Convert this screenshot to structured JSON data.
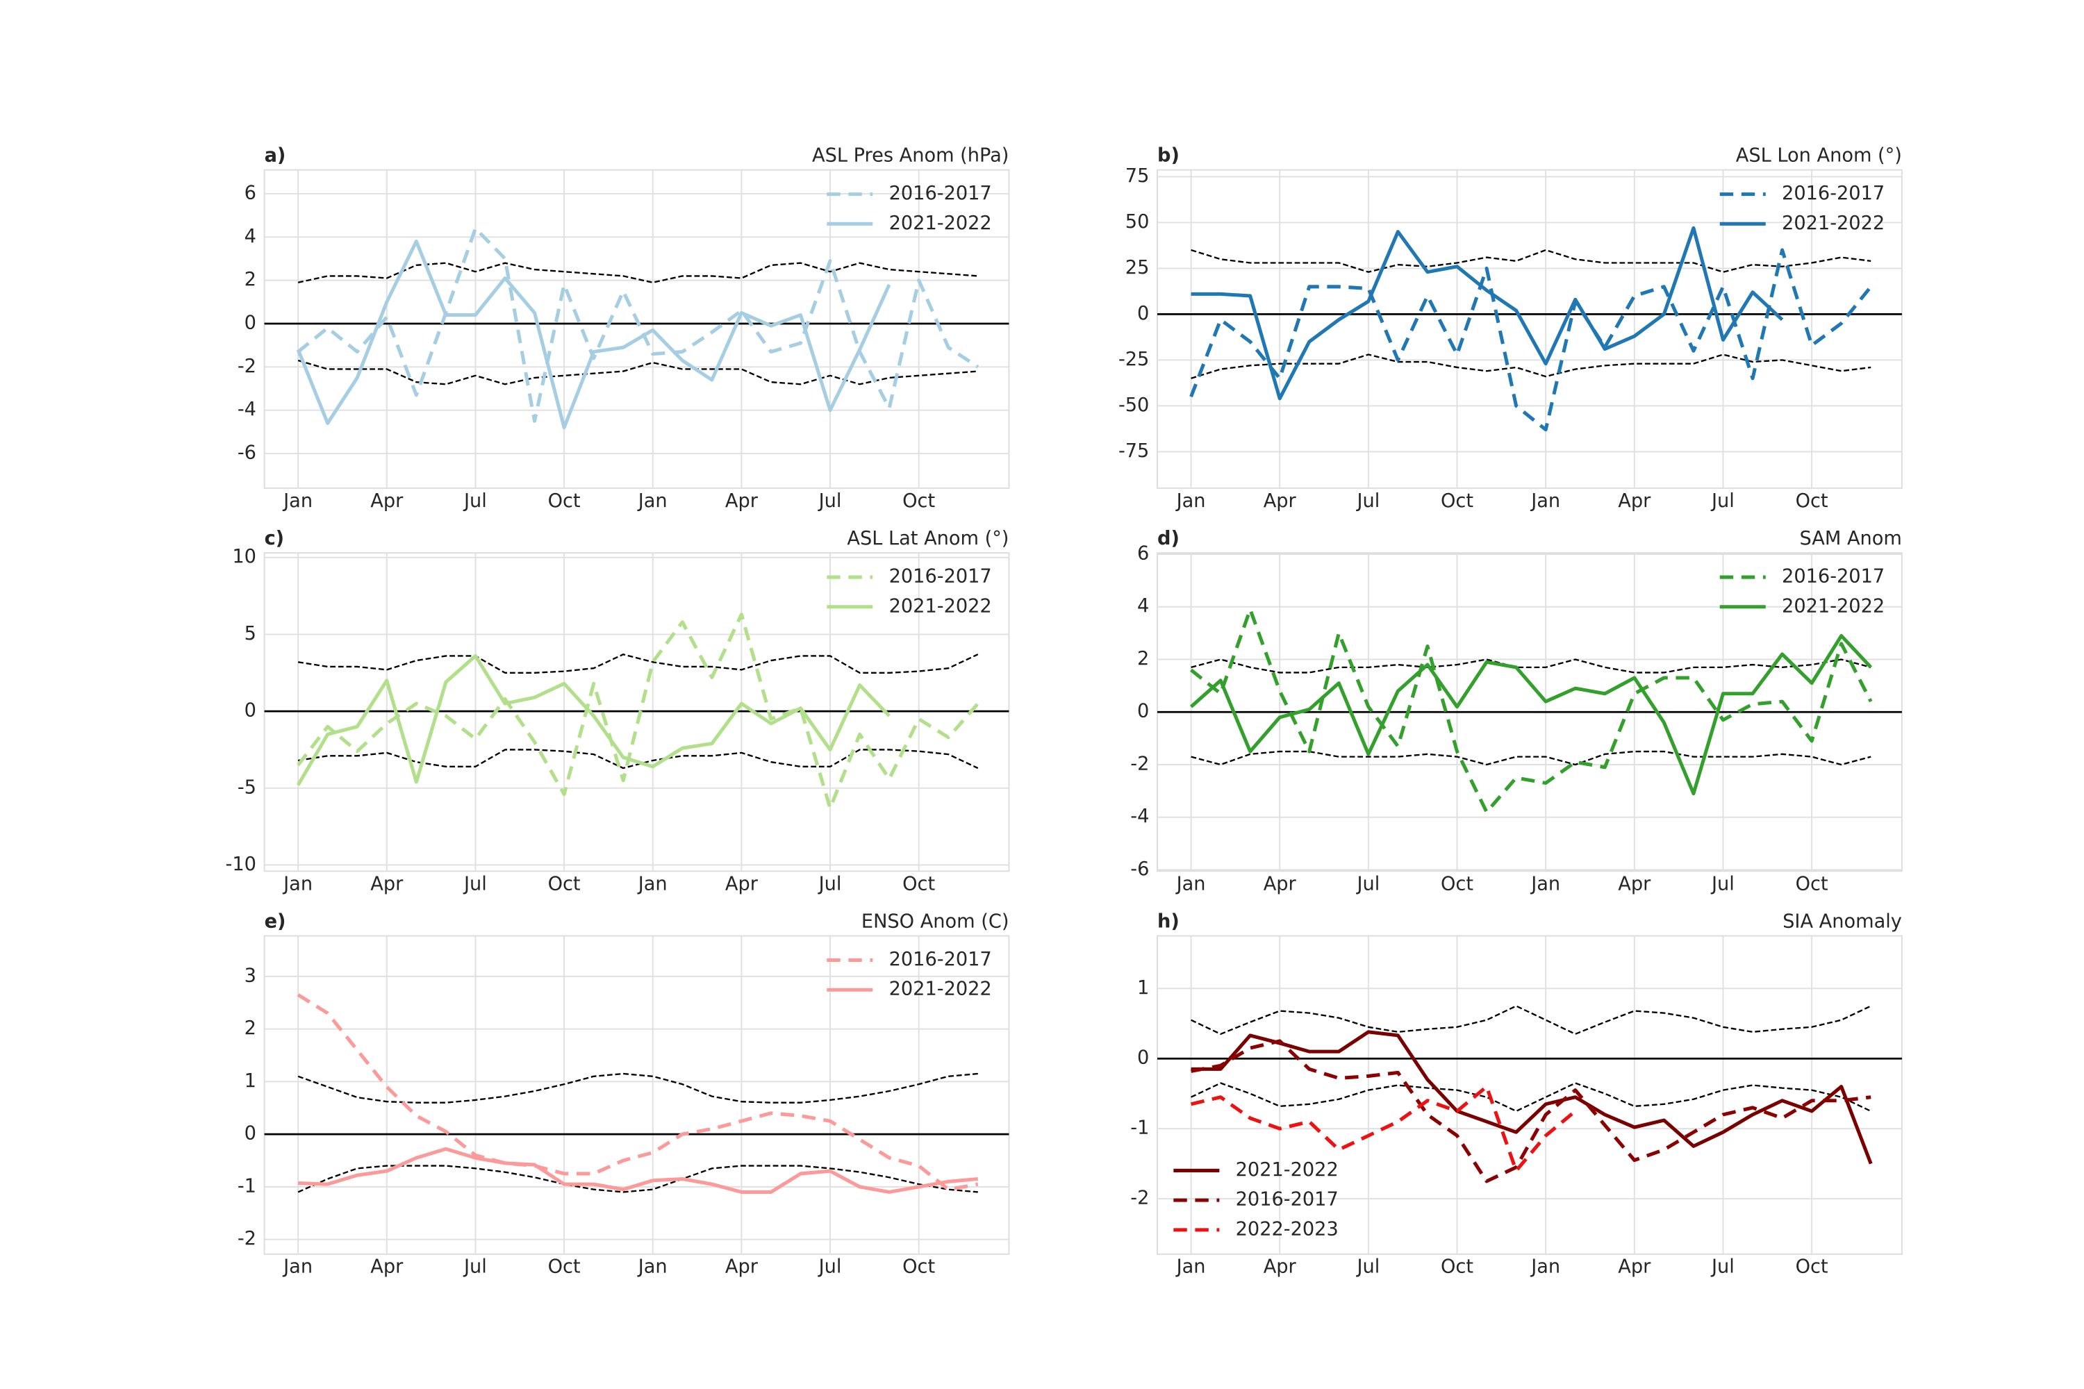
{
  "chart_data": [
    {
      "type": "line",
      "label": "a)",
      "title": "ASL Pres Anom (hPa)",
      "legend": "upper right",
      "grid": true,
      "categories": [
        "Jan",
        null,
        null,
        "Apr",
        null,
        null,
        "Jul",
        null,
        null,
        "Oct",
        null,
        null,
        "Jan",
        null,
        null,
        "Apr",
        null,
        null,
        "Jul",
        null,
        null,
        "Oct",
        null,
        null
      ],
      "ylim": [
        -7.6,
        7.1
      ],
      "yticks": [
        -6,
        -4,
        -2,
        0,
        2,
        4,
        6
      ],
      "hline": 0,
      "series": [
        {
          "name": "2016-2017",
          "color": "#a6cee3",
          "dash": true,
          "values": [
            -1.3,
            -0.2,
            -1.3,
            0.3,
            -3.3,
            0.5,
            4.4,
            3.0,
            -4.5,
            1.8,
            -1.6,
            1.5,
            -1.4,
            -1.3,
            -0.4,
            0.6,
            -1.3,
            -0.9,
            2.9,
            -1.3,
            -3.9,
            2.0,
            -1.1,
            -2.0
          ]
        },
        {
          "name": "2021-2022",
          "color": "#a6cee3",
          "dash": false,
          "values": [
            -1.2,
            -4.6,
            -2.5,
            1.0,
            3.8,
            0.4,
            0.4,
            2.1,
            0.5,
            -4.8,
            -1.3,
            -1.1,
            -0.3,
            -1.7,
            -2.6,
            0.5,
            -0.1,
            0.4,
            -4.0,
            -1.2,
            1.8,
            null,
            null,
            null
          ]
        }
      ],
      "bounds": {
        "upper": [
          1.9,
          2.2,
          2.2,
          2.1,
          2.7,
          2.8,
          2.4,
          2.8,
          2.5,
          2.4,
          2.3,
          2.2,
          1.9,
          2.2,
          2.2,
          2.1,
          2.7,
          2.8,
          2.4,
          2.8,
          2.5,
          2.4,
          2.3,
          2.2
        ],
        "lower": [
          -1.7,
          -2.1,
          -2.1,
          -2.1,
          -2.7,
          -2.8,
          -2.4,
          -2.8,
          -2.5,
          -2.4,
          -2.3,
          -2.2,
          -1.8,
          -2.1,
          -2.1,
          -2.1,
          -2.7,
          -2.8,
          -2.4,
          -2.8,
          -2.5,
          -2.4,
          -2.3,
          -2.2
        ]
      }
    },
    {
      "type": "line",
      "label": "b)",
      "title": "ASL Lon Anom (°)",
      "legend": "upper right",
      "grid": true,
      "categories": [
        "Jan",
        null,
        null,
        "Apr",
        null,
        null,
        "Jul",
        null,
        null,
        "Oct",
        null,
        null,
        "Jan",
        null,
        null,
        "Apr",
        null,
        null,
        "Jul",
        null,
        null,
        "Oct",
        null,
        null
      ],
      "ylim": [
        -94.9,
        78.7
      ],
      "yticks": [
        -75,
        -50,
        -25,
        0,
        25,
        50,
        75
      ],
      "hline": 0,
      "series": [
        {
          "name": "2016-2017",
          "color": "#1f78b4",
          "dash": true,
          "values": [
            -45,
            -3,
            -15,
            -35,
            15,
            15,
            14,
            -25,
            10,
            -22,
            25,
            -50,
            -63,
            7,
            -18,
            10,
            15,
            -20,
            15,
            -35,
            35,
            -17,
            -5,
            15
          ]
        },
        {
          "name": "2021-2022",
          "color": "#1f78b4",
          "dash": false,
          "values": [
            11,
            11,
            10,
            -46,
            -15,
            -3,
            7,
            45,
            23,
            26,
            13,
            2,
            -27,
            8,
            -19,
            -12,
            0,
            47,
            -14,
            12,
            -3,
            null,
            null,
            null
          ]
        }
      ],
      "bounds": {
        "upper": [
          35,
          30,
          28,
          28,
          28,
          28,
          23,
          27,
          26,
          28,
          31,
          29,
          35,
          30,
          28,
          28,
          28,
          28,
          23,
          27,
          26,
          28,
          31,
          29
        ],
        "lower": [
          -35,
          -30,
          -28,
          -27,
          -27,
          -27,
          -22,
          -26,
          -26,
          -29,
          -31,
          -29,
          -34,
          -30,
          -28,
          -27,
          -27,
          -27,
          -22,
          -26,
          -25,
          -28,
          -31,
          -29
        ]
      }
    },
    {
      "type": "line",
      "label": "c)",
      "title": "ASL Lat Anom (°)",
      "legend": "upper right",
      "grid": true,
      "categories": [
        "Jan",
        null,
        null,
        "Apr",
        null,
        null,
        "Jul",
        null,
        null,
        "Oct",
        null,
        null,
        "Jan",
        null,
        null,
        "Apr",
        null,
        null,
        "Jul",
        null,
        null,
        "Oct",
        null,
        null
      ],
      "ylim": [
        -10.4,
        10.3
      ],
      "yticks": [
        -10,
        -5,
        0,
        5,
        10
      ],
      "hline": 0,
      "series": [
        {
          "name": "2016-2017",
          "color": "#b2df8a",
          "dash": true,
          "values": [
            -3.5,
            -1.0,
            -2.6,
            -0.8,
            0.5,
            -0.3,
            -1.8,
            0.8,
            -2.0,
            -5.4,
            1.8,
            -4.5,
            3.2,
            5.8,
            2.2,
            6.3,
            -0.5,
            0.2,
            -6.3,
            -1.5,
            -4.4,
            -0.5,
            -1.7,
            0.5
          ]
        },
        {
          "name": "2021-2022",
          "color": "#b2df8a",
          "dash": false,
          "values": [
            -4.8,
            -1.5,
            -1.0,
            2.0,
            -4.6,
            1.9,
            3.6,
            0.5,
            0.9,
            1.8,
            -0.3,
            -3.0,
            -3.6,
            -2.4,
            -2.1,
            0.5,
            -0.8,
            0.2,
            -2.5,
            1.7,
            -0.3,
            null,
            null,
            null
          ]
        }
      ],
      "bounds": {
        "upper": [
          3.2,
          2.9,
          2.9,
          2.7,
          3.3,
          3.6,
          3.6,
          2.5,
          2.5,
          2.6,
          2.8,
          3.7,
          3.2,
          2.9,
          2.9,
          2.7,
          3.3,
          3.6,
          3.6,
          2.5,
          2.5,
          2.6,
          2.8,
          3.7
        ],
        "lower": [
          -3.2,
          -2.9,
          -2.9,
          -2.7,
          -3.3,
          -3.6,
          -3.6,
          -2.5,
          -2.5,
          -2.6,
          -2.8,
          -3.7,
          -3.2,
          -2.9,
          -2.9,
          -2.7,
          -3.3,
          -3.6,
          -3.6,
          -2.5,
          -2.5,
          -2.6,
          -2.8,
          -3.7
        ]
      }
    },
    {
      "type": "line",
      "label": "d)",
      "title": "SAM Anom",
      "legend": "upper right",
      "grid": true,
      "categories": [
        "Jan",
        null,
        null,
        "Apr",
        null,
        null,
        "Jul",
        null,
        null,
        "Oct",
        null,
        null,
        "Jan",
        null,
        null,
        "Apr",
        null,
        null,
        "Jul",
        null,
        null,
        "Oct",
        null,
        null
      ],
      "ylim": [
        -6.05,
        6.05
      ],
      "yticks": [
        -6,
        -4,
        -2,
        0,
        2,
        4,
        6
      ],
      "hline": 0,
      "series": [
        {
          "name": "2016-2017",
          "color": "#33a02c",
          "dash": true,
          "values": [
            1.6,
            0.7,
            3.9,
            0.8,
            -1.5,
            3.0,
            0.2,
            -1.3,
            2.5,
            -1.5,
            -3.8,
            -2.5,
            -2.7,
            -1.9,
            -2.1,
            0.7,
            1.3,
            1.3,
            -0.3,
            0.3,
            0.4,
            -1.1,
            2.6,
            0.4
          ]
        },
        {
          "name": "2021-2022",
          "color": "#33a02c",
          "dash": false,
          "values": [
            0.2,
            1.2,
            -1.5,
            -0.2,
            0.1,
            1.1,
            -1.6,
            0.8,
            1.8,
            0.2,
            1.9,
            1.7,
            0.4,
            0.9,
            0.7,
            1.3,
            -0.4,
            -3.1,
            0.7,
            0.7,
            2.2,
            1.1,
            2.9,
            1.7
          ]
        }
      ],
      "bounds": {
        "upper": [
          1.7,
          2.0,
          1.7,
          1.5,
          1.5,
          1.7,
          1.7,
          1.8,
          1.7,
          1.8,
          2.0,
          1.7,
          1.7,
          2.0,
          1.7,
          1.5,
          1.5,
          1.7,
          1.7,
          1.8,
          1.7,
          1.8,
          2.0,
          1.7
        ],
        "lower": [
          -1.7,
          -2.0,
          -1.6,
          -1.5,
          -1.5,
          -1.7,
          -1.7,
          -1.7,
          -1.6,
          -1.7,
          -2.0,
          -1.7,
          -1.7,
          -2.0,
          -1.6,
          -1.5,
          -1.5,
          -1.7,
          -1.7,
          -1.7,
          -1.6,
          -1.7,
          -2.0,
          -1.7
        ]
      }
    },
    {
      "type": "line",
      "label": "e)",
      "title": "ENSO Anom (C)",
      "legend": "upper right",
      "grid": true,
      "categories": [
        "Jan",
        null,
        null,
        "Apr",
        null,
        null,
        "Jul",
        null,
        null,
        "Oct",
        null,
        null,
        "Jan",
        null,
        null,
        "Apr",
        null,
        null,
        "Jul",
        null,
        null,
        "Oct",
        null,
        null
      ],
      "ylim": [
        -2.28,
        3.77
      ],
      "yticks": [
        -2,
        -1,
        0,
        1,
        2,
        3
      ],
      "hline": 0,
      "series": [
        {
          "name": "2016-2017",
          "color": "#fb9a99",
          "dash": true,
          "values": [
            2.65,
            2.3,
            1.6,
            0.9,
            0.35,
            0.05,
            -0.4,
            -0.55,
            -0.6,
            -0.75,
            -0.75,
            -0.5,
            -0.35,
            0.0,
            0.1,
            0.25,
            0.4,
            0.35,
            0.25,
            -0.1,
            -0.45,
            -0.6,
            -1.05,
            -0.95
          ]
        },
        {
          "name": "2021-2022",
          "color": "#fb9a99",
          "dash": false,
          "values": [
            -0.93,
            -0.95,
            -0.78,
            -0.7,
            -0.45,
            -0.28,
            -0.45,
            -0.55,
            -0.58,
            -0.95,
            -0.95,
            -1.05,
            -0.88,
            -0.85,
            -0.95,
            -1.1,
            -1.1,
            -0.75,
            -0.7,
            -1.0,
            -1.1,
            -1.0,
            -0.9,
            -0.85
          ]
        }
      ],
      "bounds": {
        "upper": [
          1.1,
          0.9,
          0.7,
          0.62,
          0.6,
          0.6,
          0.65,
          0.72,
          0.82,
          0.95,
          1.1,
          1.15,
          1.1,
          0.95,
          0.72,
          0.62,
          0.6,
          0.6,
          0.65,
          0.72,
          0.82,
          0.95,
          1.1,
          1.15
        ],
        "lower": [
          -1.1,
          -0.85,
          -0.65,
          -0.6,
          -0.6,
          -0.6,
          -0.65,
          -0.72,
          -0.82,
          -0.95,
          -1.05,
          -1.1,
          -1.05,
          -0.85,
          -0.65,
          -0.6,
          -0.6,
          -0.6,
          -0.65,
          -0.72,
          -0.82,
          -0.95,
          -1.05,
          -1.1
        ]
      }
    },
    {
      "type": "line",
      "label": "h)",
      "title": "SIA Anomaly",
      "legend": "lower left",
      "grid": true,
      "categories": [
        "Jan",
        null,
        null,
        "Apr",
        null,
        null,
        "Jul",
        null,
        null,
        "Oct",
        null,
        null,
        "Jan",
        null,
        null,
        "Apr",
        null,
        null,
        "Jul",
        null,
        null,
        "Oct",
        null,
        null
      ],
      "ylim": [
        -2.79,
        1.75
      ],
      "yticks": [
        -2,
        -1,
        0,
        1
      ],
      "hline": 0,
      "series": [
        {
          "name": "2021-2022",
          "color": "#7a0000",
          "dash": false,
          "values": [
            -0.15,
            -0.15,
            0.33,
            0.22,
            0.1,
            0.1,
            0.38,
            0.33,
            -0.3,
            -0.75,
            -0.9,
            -1.05,
            -0.65,
            -0.55,
            -0.8,
            -0.98,
            -0.88,
            -1.25,
            -1.05,
            -0.8,
            -0.6,
            -0.75,
            -0.4,
            -1.5
          ]
        },
        {
          "name": "2016-2017",
          "color": "#8b0000",
          "dash": true,
          "values": [
            -0.18,
            -0.1,
            0.15,
            0.25,
            -0.15,
            -0.28,
            -0.25,
            -0.2,
            -0.8,
            -1.1,
            -1.75,
            -1.55,
            -0.8,
            -0.45,
            -0.95,
            -1.45,
            -1.3,
            -1.05,
            -0.8,
            -0.7,
            -0.85,
            -0.6,
            -0.6,
            -0.55
          ]
        },
        {
          "name": "2022-2023",
          "color": "#ee1111",
          "dash": true,
          "values": [
            -0.65,
            -0.55,
            -0.85,
            -1.0,
            -0.9,
            -1.3,
            -1.1,
            -0.9,
            -0.6,
            -0.75,
            -0.4,
            -1.6,
            -1.1,
            -0.75,
            null,
            null,
            null,
            null,
            null,
            null,
            null,
            null,
            null,
            null
          ]
        }
      ],
      "bounds": {
        "upper": [
          0.55,
          0.35,
          0.52,
          0.68,
          0.65,
          0.58,
          0.45,
          0.38,
          0.42,
          0.45,
          0.55,
          0.75,
          0.55,
          0.35,
          0.52,
          0.68,
          0.65,
          0.58,
          0.45,
          0.38,
          0.42,
          0.45,
          0.55,
          0.75
        ],
        "lower": [
          -0.55,
          -0.35,
          -0.5,
          -0.68,
          -0.65,
          -0.58,
          -0.45,
          -0.38,
          -0.42,
          -0.45,
          -0.55,
          -0.75,
          -0.55,
          -0.35,
          -0.5,
          -0.68,
          -0.65,
          -0.58,
          -0.45,
          -0.38,
          -0.42,
          -0.45,
          -0.55,
          -0.75
        ]
      }
    }
  ]
}
